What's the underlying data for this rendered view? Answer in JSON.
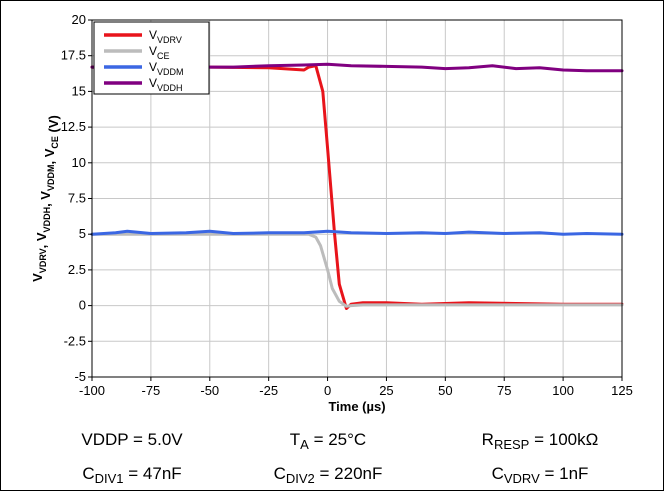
{
  "chart_data": {
    "type": "line",
    "xlabel": "Time (µs)",
    "ylabel": {
      "parts": [
        {
          "t": "V",
          "s": "VDRV"
        },
        {
          "t": ", V",
          "s": "VDDH"
        },
        {
          "t": ", V",
          "s": "VDDM"
        },
        {
          "t": ", V",
          "s": "CE"
        },
        {
          "t": " (V)",
          "s": ""
        }
      ]
    },
    "xlim": [
      -100,
      125
    ],
    "ylim": [
      -5,
      20
    ],
    "xticks": [
      "-100",
      "-75",
      "-50",
      "-25",
      "0",
      "25",
      "50",
      "75",
      "100",
      "125"
    ],
    "yticks": [
      "-5",
      "-2.5",
      "0",
      "2.5",
      "5",
      "7.5",
      "10",
      "12.5",
      "15",
      "17.5",
      "20"
    ],
    "grid": true,
    "legend_position": "top-left",
    "series": [
      {
        "name": "V",
        "name_sub": "VDRV",
        "color": "#e8141b",
        "x": [
          -100,
          -75,
          -50,
          -25,
          -10,
          -8,
          -5,
          -2,
          0,
          3,
          5,
          8,
          10,
          15,
          25,
          40,
          60,
          80,
          100,
          125
        ],
        "y": [
          16.7,
          16.7,
          16.7,
          16.65,
          16.5,
          16.7,
          16.8,
          15.0,
          11.0,
          5.0,
          1.5,
          -0.2,
          0.1,
          0.2,
          0.2,
          0.1,
          0.2,
          0.15,
          0.1,
          0.1
        ]
      },
      {
        "name": "V",
        "name_sub": "CE",
        "color": "#bcbcbc",
        "x": [
          -100,
          -75,
          -50,
          -25,
          -8,
          -5,
          -3,
          0,
          2,
          5,
          8,
          10,
          15,
          25,
          50,
          75,
          100,
          125
        ],
        "y": [
          5.0,
          5.0,
          5.0,
          5.0,
          5.0,
          4.8,
          4.2,
          2.5,
          1.2,
          0.3,
          -0.05,
          0.0,
          0.05,
          0.05,
          0.05,
          0.05,
          0.05,
          0.05
        ]
      },
      {
        "name": "V",
        "name_sub": "VDDM",
        "color": "#3b67e3",
        "x": [
          -100,
          -90,
          -85,
          -75,
          -60,
          -50,
          -40,
          -25,
          -10,
          0,
          10,
          25,
          40,
          50,
          60,
          75,
          90,
          100,
          110,
          125
        ],
        "y": [
          5.0,
          5.1,
          5.2,
          5.05,
          5.1,
          5.2,
          5.05,
          5.1,
          5.1,
          5.2,
          5.1,
          5.05,
          5.1,
          5.05,
          5.15,
          5.05,
          5.1,
          5.0,
          5.05,
          5.0
        ]
      },
      {
        "name": "V",
        "name_sub": "VDDH",
        "color": "#800080",
        "x": [
          -100,
          -90,
          -75,
          -60,
          -50,
          -40,
          -25,
          -10,
          0,
          10,
          25,
          40,
          50,
          60,
          70,
          80,
          90,
          100,
          110,
          125
        ],
        "y": [
          16.7,
          16.65,
          16.7,
          16.75,
          16.7,
          16.7,
          16.8,
          16.85,
          16.9,
          16.8,
          16.75,
          16.7,
          16.6,
          16.65,
          16.8,
          16.6,
          16.65,
          16.5,
          16.45,
          16.45
        ]
      }
    ]
  },
  "notes": [
    [
      {
        "t": "VDDP = 5.0V",
        "s": ""
      },
      {
        "t": "T",
        "s": "A",
        "after": " = 25°C"
      },
      {
        "t": "R",
        "s": "RESP",
        "after": " = 100kΩ"
      }
    ],
    [
      {
        "t": "C",
        "s": "DIV1",
        "after": " = 47nF"
      },
      {
        "t": "C",
        "s": "DIV2",
        "after": " = 220nF"
      },
      {
        "t": "C",
        "s": "VDRV",
        "after": " = 1nF"
      }
    ]
  ]
}
